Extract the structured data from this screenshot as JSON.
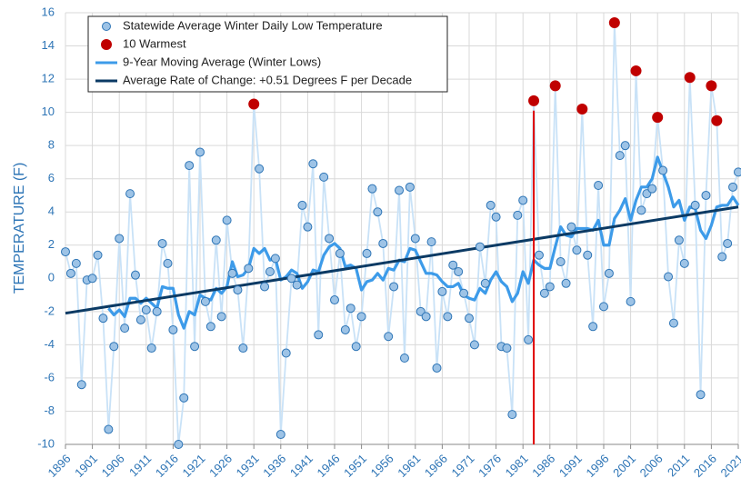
{
  "chart_data": {
    "type": "line",
    "y_label": "TEMPERATURE (F)",
    "x": [
      1896,
      1897,
      1898,
      1899,
      1900,
      1901,
      1902,
      1903,
      1904,
      1905,
      1906,
      1907,
      1908,
      1909,
      1910,
      1911,
      1912,
      1913,
      1914,
      1915,
      1916,
      1917,
      1918,
      1919,
      1920,
      1921,
      1922,
      1923,
      1924,
      1925,
      1926,
      1927,
      1928,
      1929,
      1930,
      1931,
      1932,
      1933,
      1934,
      1935,
      1936,
      1937,
      1938,
      1939,
      1940,
      1941,
      1942,
      1943,
      1944,
      1945,
      1946,
      1947,
      1948,
      1949,
      1950,
      1951,
      1952,
      1953,
      1954,
      1955,
      1956,
      1957,
      1958,
      1959,
      1960,
      1961,
      1962,
      1963,
      1964,
      1965,
      1966,
      1967,
      1968,
      1969,
      1970,
      1971,
      1972,
      1973,
      1974,
      1975,
      1976,
      1977,
      1978,
      1979,
      1980,
      1981,
      1982,
      1983,
      1984,
      1985,
      1986,
      1987,
      1988,
      1989,
      1990,
      1991,
      1992,
      1993,
      1994,
      1995,
      1996,
      1997,
      1998,
      1999,
      2000,
      2001,
      2002,
      2003,
      2004,
      2005,
      2006,
      2007,
      2008,
      2009,
      2010,
      2011,
      2012,
      2013,
      2014,
      2015,
      2016,
      2017,
      2018,
      2019,
      2020,
      2021
    ],
    "series": [
      {
        "name": "Statewide Average Winter Daily Low Temperature",
        "style": "markers-line",
        "color": "#9dc3e6",
        "line_color": "#c9e2f7",
        "edge_color": "#2e75b6",
        "values": [
          1.6,
          0.3,
          0.9,
          -6.4,
          -0.1,
          0.0,
          1.4,
          -2.4,
          -9.1,
          -4.1,
          2.4,
          -3.0,
          5.1,
          0.2,
          -2.5,
          -1.9,
          -4.2,
          -2.0,
          2.1,
          0.9,
          -3.1,
          -10,
          -7.2,
          6.8,
          -4.1,
          7.6,
          -1.4,
          -2.9,
          2.3,
          -2.3,
          3.5,
          0.3,
          -0.7,
          -4.2,
          0.6,
          10.5,
          6.6,
          -0.5,
          0.4,
          1.2,
          -9.4,
          -4.5,
          0,
          -0.4,
          4.4,
          3.1,
          6.9,
          -3.4,
          6.1,
          2.4,
          -1.3,
          1.5,
          -3.1,
          -1.8,
          -4.1,
          -2.3,
          1.5,
          5.4,
          4.0,
          2.1,
          -3.5,
          -0.5,
          5.3,
          -4.8,
          5.5,
          2.4,
          -2.0,
          -2.3,
          2.2,
          -5.4,
          -0.8,
          -2.3,
          0.8,
          0.4,
          -0.9,
          -2.4,
          -4.0,
          1.9,
          -0.3,
          4.4,
          3.7,
          -4.1,
          -4.2,
          -8.2,
          3.8,
          4.7,
          -3.7,
          10.7,
          1.4,
          -0.9,
          -0.5,
          11.6,
          1.0,
          -0.3,
          3.1,
          1.7,
          10.2,
          1.4,
          -2.9,
          5.6,
          -1.7,
          0.3,
          15.4,
          7.4,
          8.0,
          -1.4,
          12.5,
          4.1,
          5.1,
          5.4,
          9.7,
          6.5,
          0.1,
          -2.7,
          2.3,
          0.9,
          12.1,
          4.4,
          -7.0,
          5.0,
          11.6,
          9.5,
          1.3,
          2.1,
          5.5,
          6.4
        ]
      },
      {
        "name": "10 Warmest",
        "style": "markers",
        "color": "#c00000",
        "values": [
          null,
          null,
          null,
          null,
          null,
          null,
          null,
          null,
          null,
          null,
          null,
          null,
          null,
          null,
          null,
          null,
          null,
          null,
          null,
          null,
          null,
          null,
          null,
          null,
          null,
          null,
          null,
          null,
          null,
          null,
          null,
          null,
          null,
          null,
          null,
          10.5,
          null,
          null,
          null,
          null,
          null,
          null,
          null,
          null,
          null,
          null,
          null,
          null,
          null,
          null,
          null,
          null,
          null,
          null,
          null,
          null,
          null,
          null,
          null,
          null,
          null,
          null,
          null,
          null,
          null,
          null,
          null,
          null,
          null,
          null,
          null,
          null,
          null,
          null,
          null,
          null,
          null,
          null,
          null,
          null,
          null,
          null,
          null,
          null,
          null,
          null,
          null,
          10.7,
          null,
          null,
          null,
          11.6,
          null,
          null,
          null,
          null,
          10.2,
          null,
          null,
          null,
          null,
          null,
          15.4,
          null,
          null,
          null,
          12.5,
          null,
          null,
          null,
          9.7,
          null,
          null,
          null,
          null,
          null,
          12.1,
          null,
          null,
          null,
          11.6,
          9.5,
          null,
          null,
          null,
          null
        ]
      },
      {
        "name": "9-Year Moving Average (Winter Lows)",
        "style": "line",
        "color": "#3d9be9",
        "values": [
          null,
          null,
          null,
          null,
          null,
          null,
          null,
          null,
          -1.8,
          -2.2,
          -1.9,
          -2.3,
          -1.2,
          -1.2,
          -1.5,
          -1.2,
          -1.5,
          -1.8,
          -0.5,
          -0.6,
          -0.6,
          -2.2,
          -3.0,
          -2.0,
          -2.2,
          -1.0,
          -1.2,
          -1.3,
          -0.6,
          -0.9,
          -0.5,
          1.0,
          0.1,
          0.2,
          0.6,
          1.8,
          1.5,
          1.8,
          1.1,
          1.2,
          -0.1,
          0.1,
          0.5,
          0.3,
          -0.6,
          -0.2,
          0.5,
          0.4,
          1.4,
          1.9,
          2.1,
          1.8,
          0.7,
          0.8,
          0.6,
          -0.7,
          -0.2,
          -0.1,
          0.3,
          -0.1,
          0.6,
          0.5,
          1.1,
          1.0,
          1.8,
          1.7,
          1.0,
          0.3,
          0.3,
          0.2,
          -0.2,
          -0.5,
          -0.5,
          -0.3,
          -1.0,
          -1.2,
          -1.3,
          -0.6,
          -0.9,
          -0.1,
          0.4,
          -0.2,
          -0.5,
          -1.4,
          -0.9,
          0.4,
          -0.3,
          1.1,
          0.8,
          0.6,
          0.6,
          1.9,
          3.1,
          2.6,
          2.5,
          3.0,
          3.0,
          3.0,
          2.9,
          3.5,
          2.0,
          2.0,
          3.6,
          4.1,
          4.8,
          3.5,
          4.7,
          5.5,
          5.5,
          6.0,
          7.3,
          6.4,
          5.5,
          4.3,
          4.7,
          3.5,
          4.3,
          4.2,
          2.9,
          2.4,
          3.2,
          4.3,
          4.4,
          4.4,
          4.9,
          4.4
        ]
      },
      {
        "name": "Average Rate of Change: +0.51 Degrees F per Decade",
        "style": "line",
        "color": "#0b3a64",
        "x": [
          1896,
          2021
        ],
        "values": [
          -2.1,
          4.3
        ]
      }
    ],
    "vline": {
      "x": 1983,
      "top": 10.1,
      "color": "#e00000"
    },
    "xlim": [
      1896,
      2021
    ],
    "xticks": [
      1896,
      1901,
      1906,
      1911,
      1916,
      1921,
      1926,
      1931,
      1936,
      1941,
      1946,
      1951,
      1956,
      1961,
      1966,
      1971,
      1976,
      1981,
      1986,
      1991,
      1996,
      2001,
      2006,
      2011,
      2016,
      2021
    ],
    "ylim": [
      -10,
      16
    ],
    "yticks": [
      -10,
      -8,
      -6,
      -4,
      -2,
      0,
      2,
      4,
      6,
      8,
      10,
      12,
      14,
      16
    ],
    "grid": true,
    "legend": "upper-left"
  }
}
